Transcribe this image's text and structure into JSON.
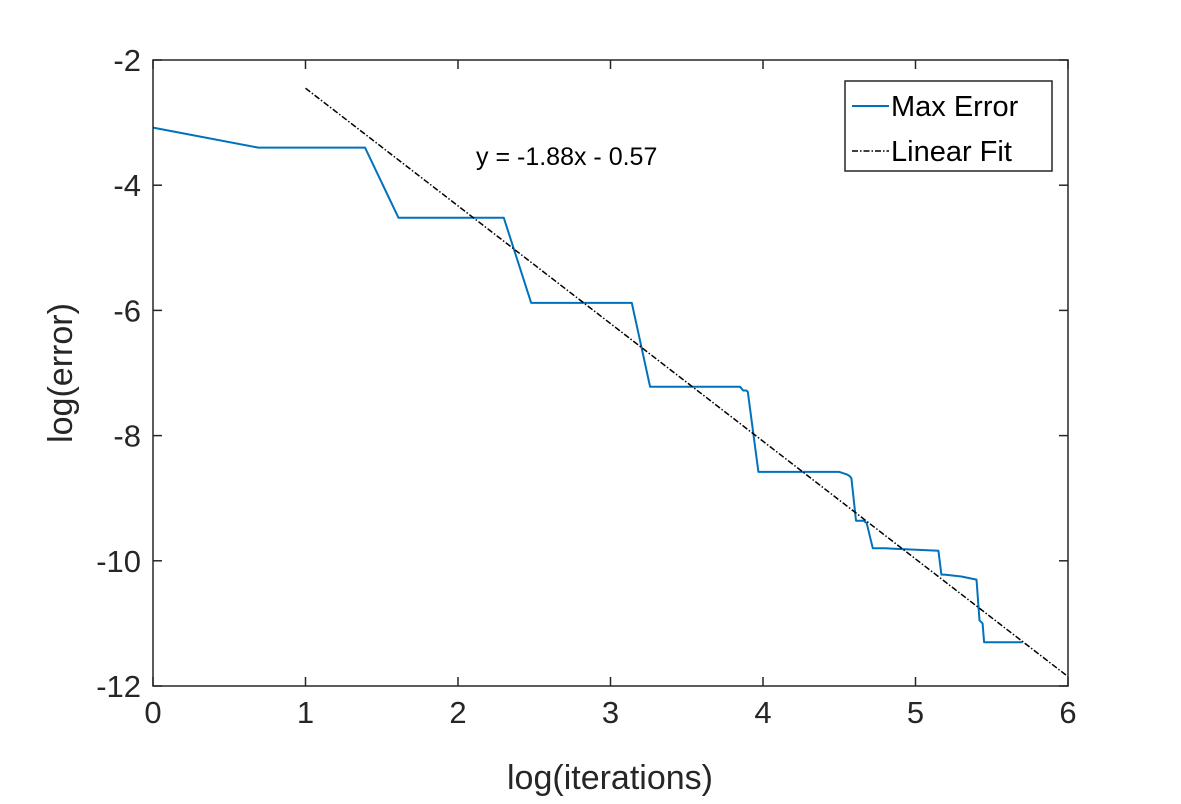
{
  "chart_data": {
    "type": "line",
    "title": "",
    "xlabel": "log(iterations)",
    "ylabel": "log(error)",
    "xlim": [
      0,
      6
    ],
    "ylim": [
      -12,
      -2
    ],
    "xticks": [
      0,
      1,
      2,
      3,
      4,
      5,
      6
    ],
    "xtick_labels": [
      "0",
      "1",
      "2",
      "3",
      "4",
      "5",
      "6"
    ],
    "yticks": [
      -12,
      -10,
      -8,
      -6,
      -4,
      -2
    ],
    "ytick_labels": [
      "-12",
      "-10",
      "-8",
      "-6",
      "-4",
      "-2"
    ],
    "grid": false,
    "legend_position": "top-right",
    "annotation": "y = -1.88x - 0.57",
    "series": [
      {
        "name": "Max Error",
        "color": "#0072BD",
        "style": "solid",
        "x": [
          0,
          0.69,
          1.39,
          1.61,
          2.3,
          2.48,
          3.14,
          3.26,
          3.85,
          3.87,
          3.89,
          3.9,
          3.97,
          4.5,
          4.55,
          4.57,
          4.58,
          4.61,
          4.66,
          4.68,
          4.72,
          4.8,
          5.15,
          5.17,
          5.19,
          5.3,
          5.4,
          5.42,
          5.44,
          5.45,
          5.7
        ],
        "y": [
          -3.08,
          -3.4,
          -3.4,
          -4.52,
          -4.52,
          -5.88,
          -5.88,
          -7.22,
          -7.22,
          -7.28,
          -7.28,
          -7.3,
          -8.58,
          -8.58,
          -8.62,
          -8.65,
          -8.68,
          -9.36,
          -9.36,
          -9.4,
          -9.8,
          -9.8,
          -9.84,
          -10.22,
          -10.22,
          -10.25,
          -10.3,
          -10.95,
          -11.0,
          -11.3,
          -11.3
        ]
      },
      {
        "name": "Linear Fit",
        "color": "#000000",
        "style": "dashdot",
        "x": [
          1,
          6
        ],
        "y": [
          -2.45,
          -11.85
        ]
      }
    ]
  }
}
